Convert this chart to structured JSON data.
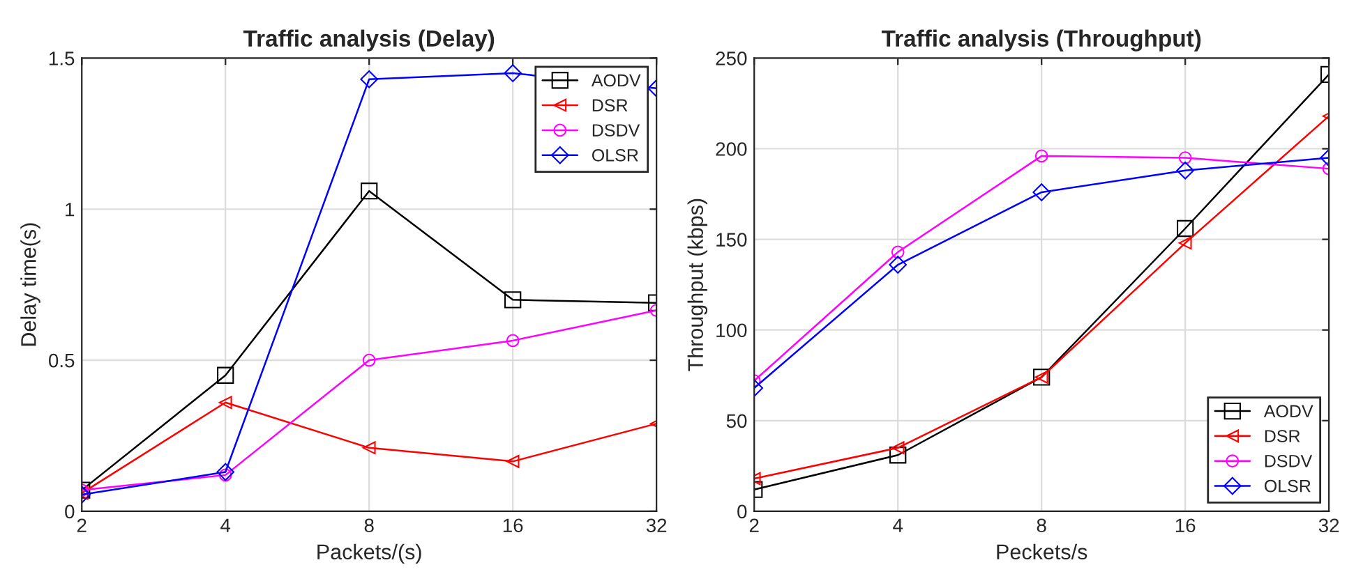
{
  "chart_data": [
    {
      "type": "line",
      "title": "Traffic analysis (Delay)",
      "xlabel": "Packets/(s)",
      "ylabel": "Delay time(s)",
      "x": [
        2,
        4,
        8,
        16,
        32
      ],
      "log": "x",
      "xlim": [
        2,
        32
      ],
      "xticks": [
        2,
        4,
        8,
        16,
        32
      ],
      "ylim": [
        0,
        1.5
      ],
      "yticks": [
        0,
        0.5,
        1,
        1.5
      ],
      "grid": true,
      "legend": "top right",
      "series": [
        {
          "name": "AODV",
          "color": "#000000",
          "marker": "square",
          "values": [
            0.07,
            0.45,
            1.06,
            0.7,
            0.69
          ]
        },
        {
          "name": "DSR",
          "color": "#ff0000",
          "marker": "triangle",
          "values": [
            0.06,
            0.36,
            0.21,
            0.165,
            0.29
          ]
        },
        {
          "name": "DSDV",
          "color": "#ff00ff",
          "marker": "circle",
          "values": [
            0.07,
            0.12,
            0.5,
            0.565,
            0.665
          ]
        },
        {
          "name": "OLSR",
          "color": "#0000ff",
          "marker": "diamond",
          "values": [
            0.055,
            0.13,
            1.43,
            1.45,
            1.4
          ]
        }
      ]
    },
    {
      "type": "line",
      "title": "Traffic analysis (Throughput)",
      "xlabel": "Peckets/s",
      "ylabel": "Throughput (kbps)",
      "x": [
        2,
        4,
        8,
        16,
        32
      ],
      "log": "x",
      "xlim": [
        2,
        32
      ],
      "xticks": [
        2,
        4,
        8,
        16,
        32
      ],
      "ylim": [
        0,
        250
      ],
      "yticks": [
        0,
        50,
        100,
        150,
        200,
        250
      ],
      "grid": true,
      "legend": "bottom right",
      "series": [
        {
          "name": "AODV",
          "color": "#000000",
          "marker": "square",
          "values": [
            12,
            31,
            74,
            156,
            241
          ]
        },
        {
          "name": "DSR",
          "color": "#ff0000",
          "marker": "triangle",
          "values": [
            18,
            35,
            74,
            148,
            218
          ]
        },
        {
          "name": "DSDV",
          "color": "#ff00ff",
          "marker": "circle",
          "values": [
            72,
            143,
            196,
            195,
            189
          ]
        },
        {
          "name": "OLSR",
          "color": "#0000ff",
          "marker": "diamond",
          "values": [
            68,
            136,
            176,
            188,
            195
          ]
        }
      ]
    }
  ]
}
